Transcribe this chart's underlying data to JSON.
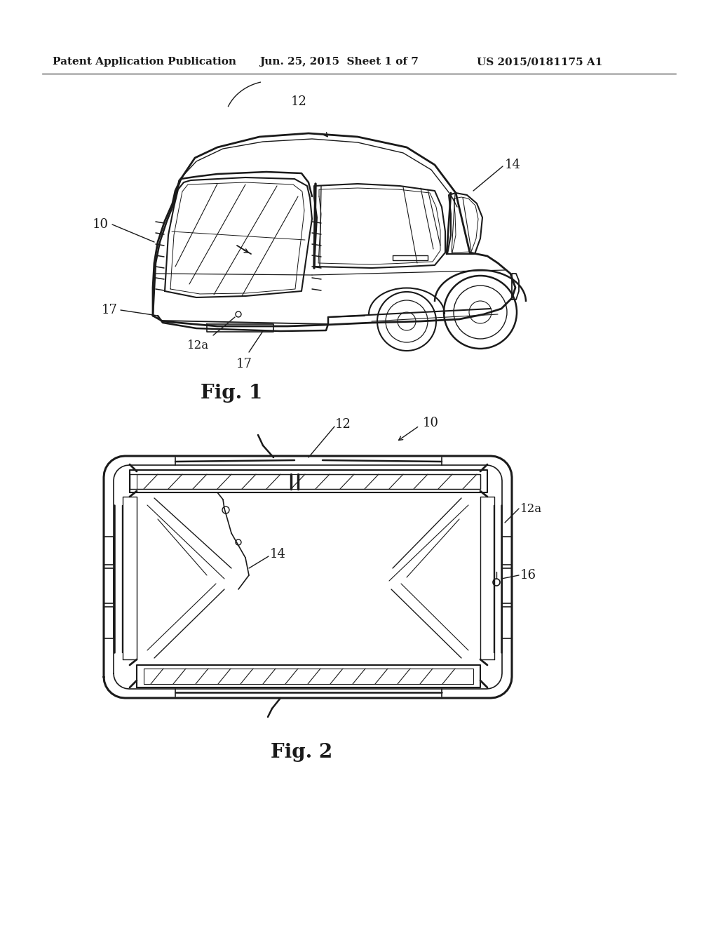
{
  "header_left": "Patent Application Publication",
  "header_center": "Jun. 25, 2015  Sheet 1 of 7",
  "header_right": "US 2015/0181175 A1",
  "fig1_caption": "Fig. 1",
  "fig2_caption": "Fig. 2",
  "bg_color": "#ffffff",
  "line_color": "#1a1a1a",
  "header_fontsize": 11,
  "caption_fontsize": 20,
  "label_fontsize": 13
}
